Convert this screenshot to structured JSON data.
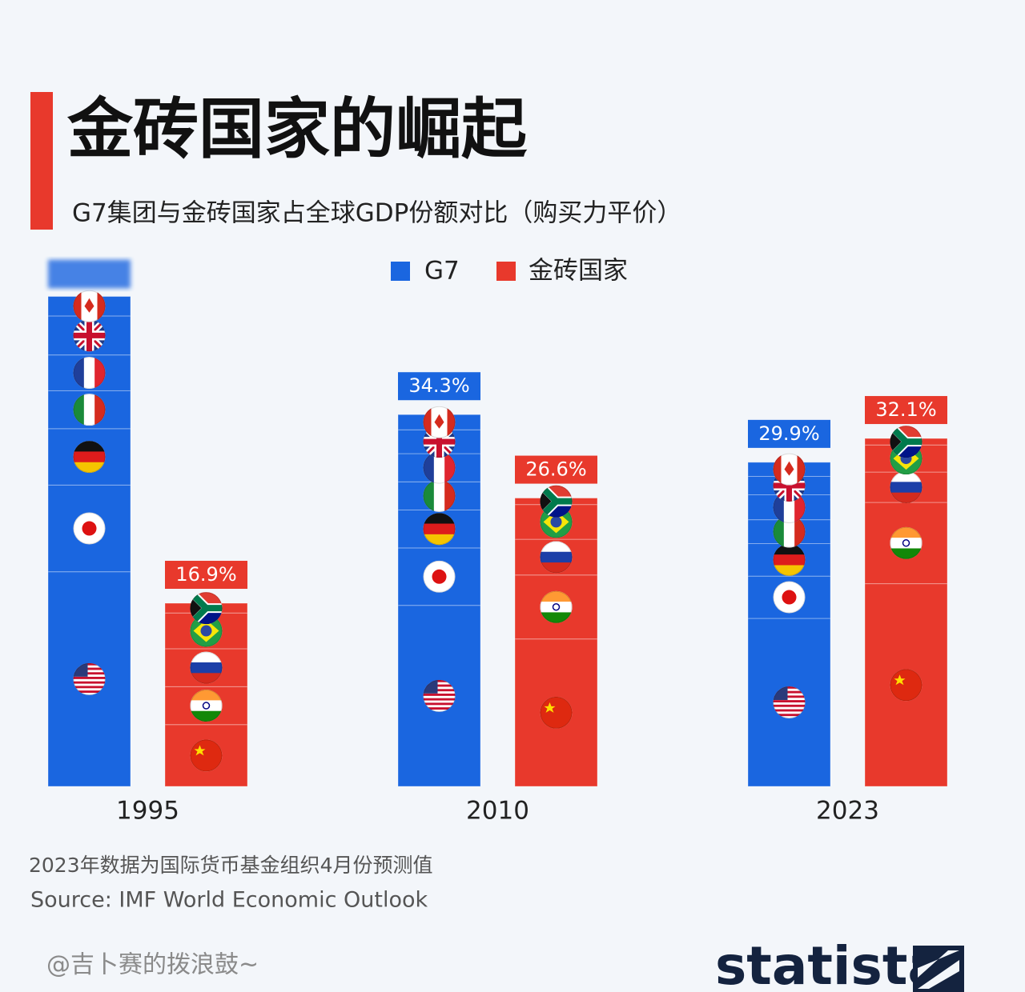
{
  "chart_data": {
    "type": "stacked_bar",
    "title": "金砖国家的崛起",
    "subtitle": "G7集团与金砖国家占全球GDP份额对比（购买力平价）",
    "categories": [
      "1995",
      "2010",
      "2023"
    ],
    "series": [
      {
        "name": "G7",
        "color": "#1a66e0",
        "values": [
          45.2,
          34.3,
          29.9
        ],
        "value_labels": [
          null,
          "34.3%",
          "29.9%"
        ],
        "segments": [
          [
            19.8,
            8.0,
            5.2,
            3.5,
            3.3,
            3.6,
            1.8
          ],
          [
            16.7,
            5.3,
            3.5,
            2.6,
            2.6,
            2.2,
            1.4
          ],
          [
            15.5,
            3.9,
            3.0,
            2.2,
            2.3,
            1.7,
            1.3
          ]
        ]
      },
      {
        "name": "金砖国家",
        "color": "#e8392c",
        "values": [
          16.9,
          26.6,
          32.1
        ],
        "value_labels": [
          "16.9%",
          "26.6%",
          "32.1%"
        ],
        "segments": [
          [
            5.7,
            3.5,
            3.5,
            3.3,
            0.9
          ],
          [
            13.6,
            5.9,
            3.3,
            3.2,
            0.6
          ],
          [
            18.7,
            7.5,
            2.8,
            2.5,
            0.6
          ]
        ]
      }
    ],
    "note": "2023年数据为国际货币基金组织4月份预测值",
    "source": "Source: IMF World Economic Outlook",
    "watermark": "@吉卜赛的拨浪鼓~",
    "logo": "statista"
  }
}
